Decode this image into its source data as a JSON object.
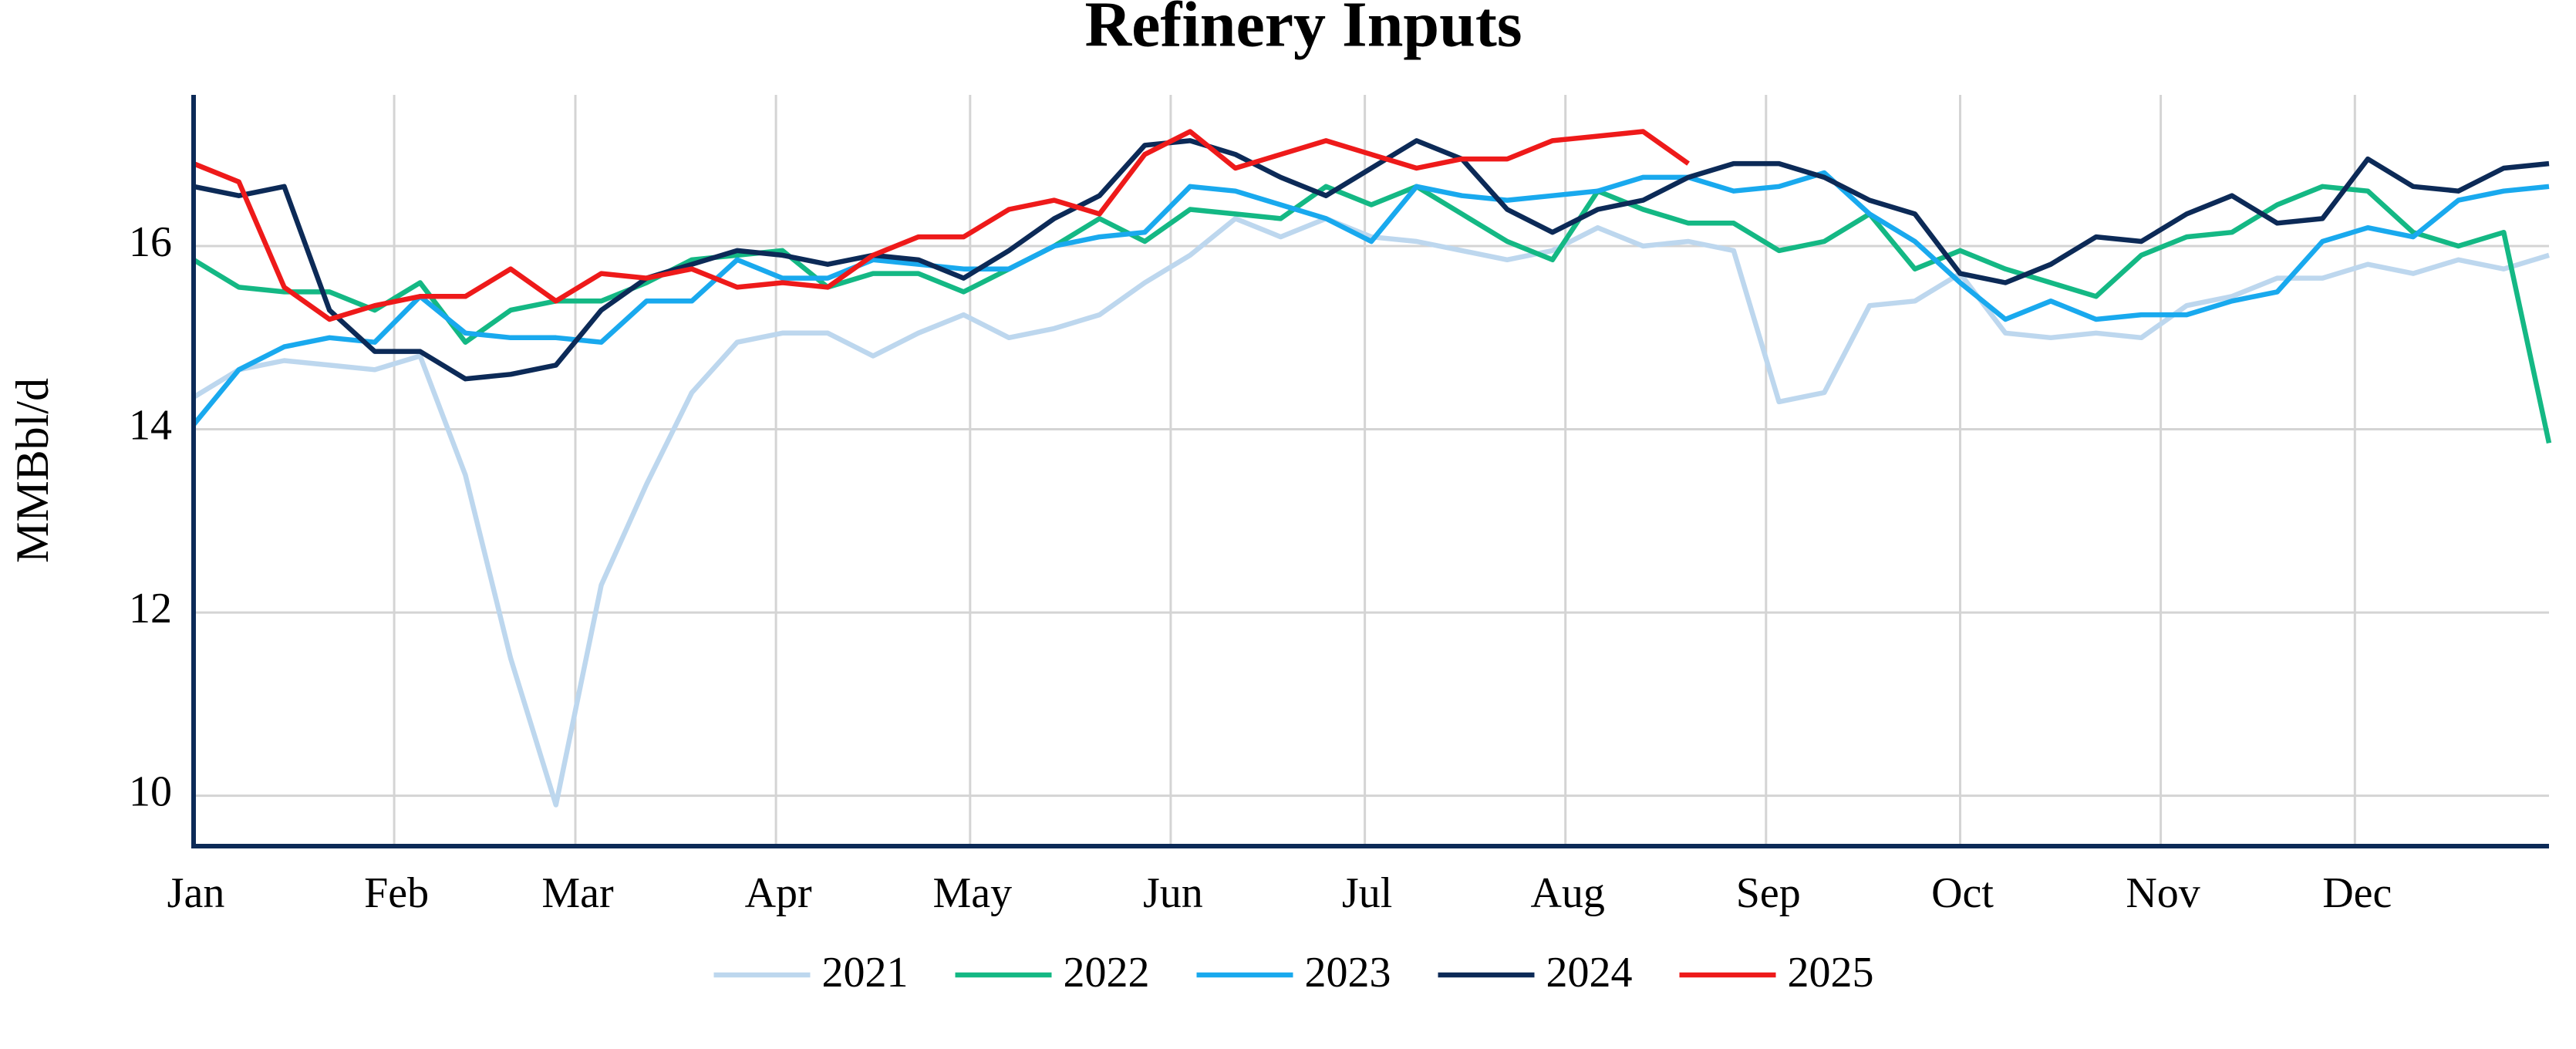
{
  "chart_data": {
    "type": "line",
    "title": "Refinery Inputs",
    "y_label": "MMBbl/d",
    "x": [
      1,
      8,
      15,
      22,
      29,
      36,
      43,
      50,
      57,
      64,
      71,
      78,
      85,
      92,
      99,
      106,
      113,
      120,
      127,
      134,
      141,
      148,
      155,
      162,
      169,
      176,
      183,
      190,
      197,
      204,
      211,
      218,
      225,
      232,
      239,
      246,
      253,
      260,
      267,
      274,
      281,
      288,
      295,
      302,
      309,
      316,
      323,
      330,
      337,
      344,
      351,
      358,
      365
    ],
    "xlim": [
      1,
      365
    ],
    "xticks": [
      {
        "value": 1,
        "label": "Jan"
      },
      {
        "value": 32,
        "label": "Feb"
      },
      {
        "value": 60,
        "label": "Mar"
      },
      {
        "value": 91,
        "label": "Apr"
      },
      {
        "value": 121,
        "label": "May"
      },
      {
        "value": 152,
        "label": "Jun"
      },
      {
        "value": 182,
        "label": "Jul"
      },
      {
        "value": 213,
        "label": "Aug"
      },
      {
        "value": 244,
        "label": "Sep"
      },
      {
        "value": 274,
        "label": "Oct"
      },
      {
        "value": 305,
        "label": "Nov"
      },
      {
        "value": 335,
        "label": "Dec"
      }
    ],
    "ylim": [
      9.45,
      17.65
    ],
    "yticks": [
      10,
      12,
      14,
      16
    ],
    "grid": true,
    "legend": "bottom",
    "series": [
      {
        "name": "2021",
        "color": "#bdd7ee",
        "values": [
          14.35,
          14.65,
          14.75,
          14.7,
          14.65,
          14.8,
          13.5,
          11.5,
          9.9,
          12.3,
          13.4,
          14.4,
          14.95,
          15.05,
          15.05,
          14.8,
          15.05,
          15.25,
          15.0,
          15.1,
          15.25,
          15.6,
          15.9,
          16.3,
          16.1,
          16.3,
          16.1,
          16.05,
          15.95,
          15.85,
          15.95,
          16.2,
          16.0,
          16.05,
          15.95,
          14.3,
          14.4,
          15.35,
          15.4,
          15.7,
          15.05,
          15.0,
          15.05,
          15.0,
          15.35,
          15.45,
          15.65,
          15.65,
          15.8,
          15.7,
          15.85,
          15.75,
          15.9
        ]
      },
      {
        "name": "2022",
        "color": "#14b884",
        "values": [
          15.85,
          15.55,
          15.5,
          15.5,
          15.3,
          15.6,
          14.95,
          15.3,
          15.4,
          15.4,
          15.6,
          15.85,
          15.9,
          15.95,
          15.55,
          15.7,
          15.7,
          15.5,
          15.75,
          16.0,
          16.3,
          16.05,
          16.4,
          16.35,
          16.3,
          16.65,
          16.45,
          16.65,
          16.35,
          16.05,
          15.85,
          16.6,
          16.4,
          16.25,
          16.25,
          15.95,
          16.05,
          16.35,
          15.75,
          15.95,
          15.75,
          15.6,
          15.45,
          15.9,
          16.1,
          16.15,
          16.45,
          16.65,
          16.6,
          16.15,
          16.0,
          16.15,
          13.85
        ]
      },
      {
        "name": "2023",
        "color": "#19a9ee",
        "values": [
          14.05,
          14.65,
          14.9,
          15.0,
          14.95,
          15.45,
          15.05,
          15.0,
          15.0,
          14.95,
          15.4,
          15.4,
          15.85,
          15.65,
          15.65,
          15.85,
          15.8,
          15.75,
          15.75,
          16.0,
          16.1,
          16.15,
          16.65,
          16.6,
          16.45,
          16.3,
          16.05,
          16.65,
          16.55,
          16.5,
          16.55,
          16.6,
          16.75,
          16.75,
          16.6,
          16.65,
          16.8,
          16.35,
          16.05,
          15.6,
          15.2,
          15.4,
          15.2,
          15.25,
          15.25,
          15.4,
          15.5,
          16.05,
          16.2,
          16.1,
          16.5,
          16.6,
          16.65
        ]
      },
      {
        "name": "2024",
        "color": "#0c2a57",
        "values": [
          16.65,
          16.55,
          16.65,
          15.3,
          14.85,
          14.85,
          14.55,
          14.6,
          14.7,
          15.3,
          15.65,
          15.8,
          15.95,
          15.9,
          15.8,
          15.9,
          15.85,
          15.65,
          15.95,
          16.3,
          16.55,
          17.1,
          17.15,
          17.0,
          16.75,
          16.55,
          16.85,
          17.15,
          16.95,
          16.4,
          16.15,
          16.4,
          16.5,
          16.75,
          16.9,
          16.9,
          16.75,
          16.5,
          16.35,
          15.7,
          15.6,
          15.8,
          16.1,
          16.05,
          16.35,
          16.55,
          16.25,
          16.3,
          16.95,
          16.65,
          16.6,
          16.85,
          16.9
        ]
      },
      {
        "name": "2025",
        "color": "#ee1a1a",
        "values": [
          16.9,
          16.7,
          15.55,
          15.2,
          15.35,
          15.45,
          15.45,
          15.75,
          15.4,
          15.7,
          15.65,
          15.75,
          15.55,
          15.6,
          15.55,
          15.9,
          16.1,
          16.1,
          16.4,
          16.5,
          16.35,
          17.0,
          17.25,
          16.85,
          17.0,
          17.15,
          17.0,
          16.85,
          16.95,
          16.95,
          17.15,
          17.2,
          17.25,
          16.9,
          null,
          null,
          null,
          null,
          null,
          null,
          null,
          null,
          null,
          null,
          null,
          null,
          null,
          null,
          null,
          null,
          null,
          null,
          null
        ]
      }
    ]
  }
}
